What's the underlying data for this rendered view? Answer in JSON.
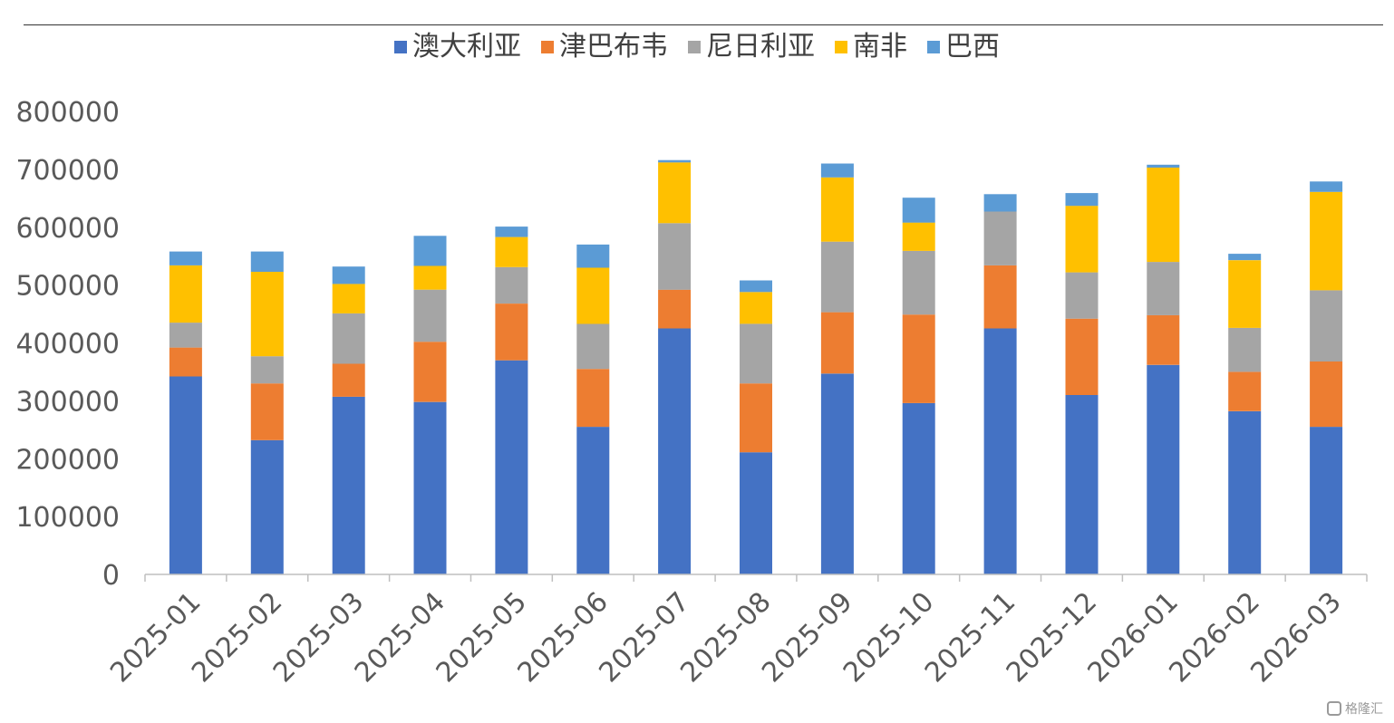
{
  "legend_items": [
    {
      "label": "澳大利亚",
      "color": "#4472C4"
    },
    {
      "label": "津巴布韦",
      "color": "#ED7D31"
    },
    {
      "label": "尼日利亚",
      "color": "#A5A5A5"
    },
    {
      "label": "南非",
      "color": "#FFC000"
    },
    {
      "label": "巴西",
      "color": "#5B9BD5"
    }
  ],
  "watermark_text": "格隆汇",
  "chart_data": {
    "type": "bar",
    "stacked": true,
    "categories": [
      "2025-01",
      "2025-02",
      "2025-03",
      "2025-04",
      "2025-05",
      "2025-06",
      "2025-07",
      "2025-08",
      "2025-09",
      "2025-10",
      "2025-11",
      "2025-12",
      "2026-01",
      "2026-02",
      "2026-03"
    ],
    "series": [
      {
        "name": "澳大利亚",
        "color": "#4472C4",
        "values": [
          342000,
          232000,
          307000,
          298000,
          370000,
          255000,
          425000,
          211000,
          347000,
          296000,
          425000,
          310000,
          362000,
          282000,
          255000
        ]
      },
      {
        "name": "津巴布韦",
        "color": "#ED7D31",
        "values": [
          50000,
          98000,
          57000,
          104000,
          98000,
          100000,
          67000,
          119000,
          106000,
          153000,
          109000,
          132000,
          86000,
          68000,
          113000
        ]
      },
      {
        "name": "尼日利亚",
        "color": "#A5A5A5",
        "values": [
          43000,
          47000,
          87000,
          90000,
          63000,
          78000,
          115000,
          103000,
          122000,
          110000,
          93000,
          80000,
          92000,
          76000,
          123000
        ]
      },
      {
        "name": "南非",
        "color": "#FFC000",
        "values": [
          99000,
          146000,
          51000,
          41000,
          52000,
          97000,
          105000,
          55000,
          111000,
          49000,
          0,
          115000,
          163000,
          117000,
          170000
        ]
      },
      {
        "name": "巴西",
        "color": "#5B9BD5",
        "values": [
          24000,
          35000,
          30000,
          52000,
          18000,
          40000,
          4000,
          20000,
          24000,
          43000,
          30000,
          22000,
          5000,
          11000,
          18000
        ]
      }
    ],
    "yticks": [
      "0",
      "100000",
      "200000",
      "300000",
      "400000",
      "500000",
      "600000",
      "700000",
      "800000"
    ],
    "ylim": [
      0,
      800000
    ],
    "grid": false,
    "legend_position": "top"
  }
}
